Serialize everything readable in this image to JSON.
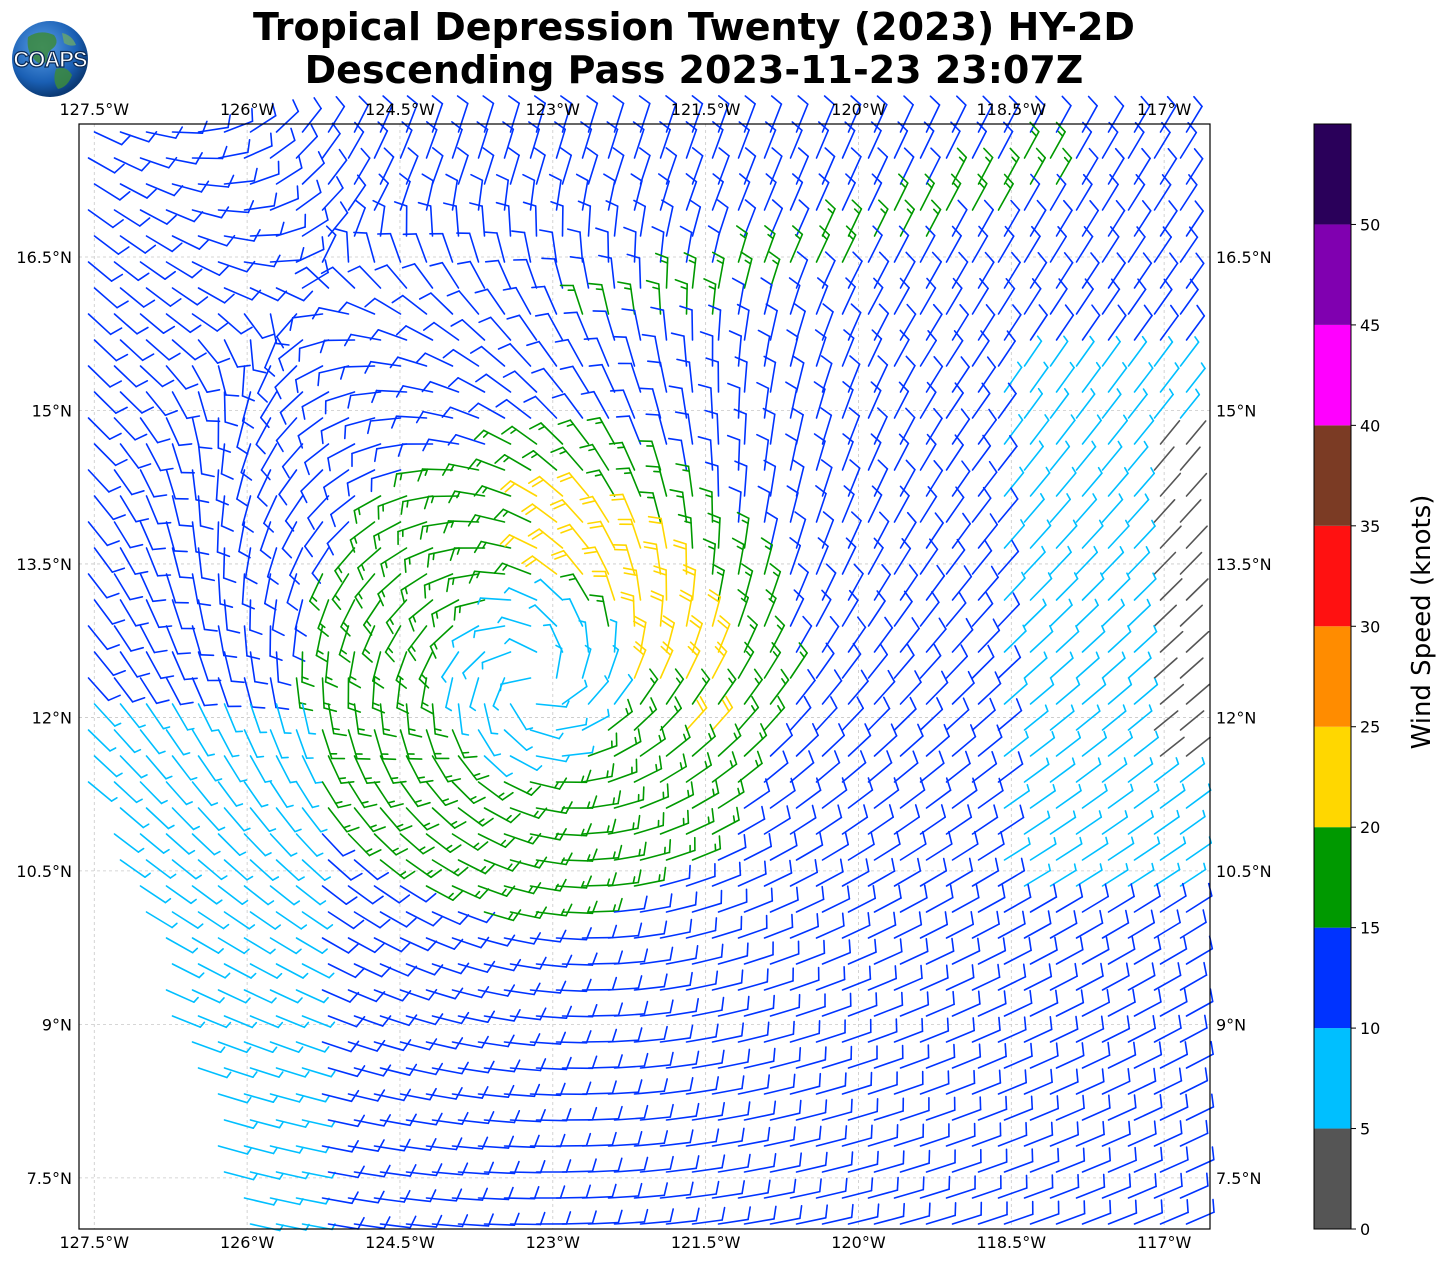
{
  "title": {
    "line1": "Tropical Depression Twenty (2023) HY-2D",
    "line2": "Descending Pass 2023-11-23 23:07Z"
  },
  "logo": {
    "text": "COAPS",
    "icon": "globe-icon"
  },
  "map": {
    "lon_range": [
      -127.65,
      -116.55
    ],
    "lat_range": [
      7.0,
      17.8
    ],
    "longitude_ticks": [
      "127.5°W",
      "126°W",
      "124.5°W",
      "123°W",
      "121.5°W",
      "120°W",
      "118.5°W",
      "117°W"
    ],
    "latitude_ticks": [
      "16.5°N",
      "15°N",
      "13.5°N",
      "12°N",
      "10.5°N",
      "9°N",
      "7.5°N"
    ],
    "grid": "dashed light gray",
    "storm_center": {
      "lon": -123.2,
      "lat": 12.35
    }
  },
  "colorbar": {
    "label": "Wind Speed (knots)",
    "ticks": [
      "0",
      "5",
      "10",
      "15",
      "20",
      "25",
      "30",
      "35",
      "40",
      "45",
      "50"
    ],
    "bins": [
      {
        "min": 0,
        "max": 5,
        "color": "#555555"
      },
      {
        "min": 5,
        "max": 10,
        "color": "#00bfff"
      },
      {
        "min": 10,
        "max": 15,
        "color": "#0033ff"
      },
      {
        "min": 15,
        "max": 20,
        "color": "#009900"
      },
      {
        "min": 20,
        "max": 25,
        "color": "#ffd700"
      },
      {
        "min": 25,
        "max": 30,
        "color": "#ff8c00"
      },
      {
        "min": 30,
        "max": 35,
        "color": "#ff1111"
      },
      {
        "min": 35,
        "max": 40,
        "color": "#7b3b24"
      },
      {
        "min": 40,
        "max": 45,
        "color": "#ff00ff"
      },
      {
        "min": 45,
        "max": 50,
        "color": "#8000b0"
      },
      {
        "min": 50,
        "max": 55,
        "color": "#2a005a"
      }
    ]
  }
}
